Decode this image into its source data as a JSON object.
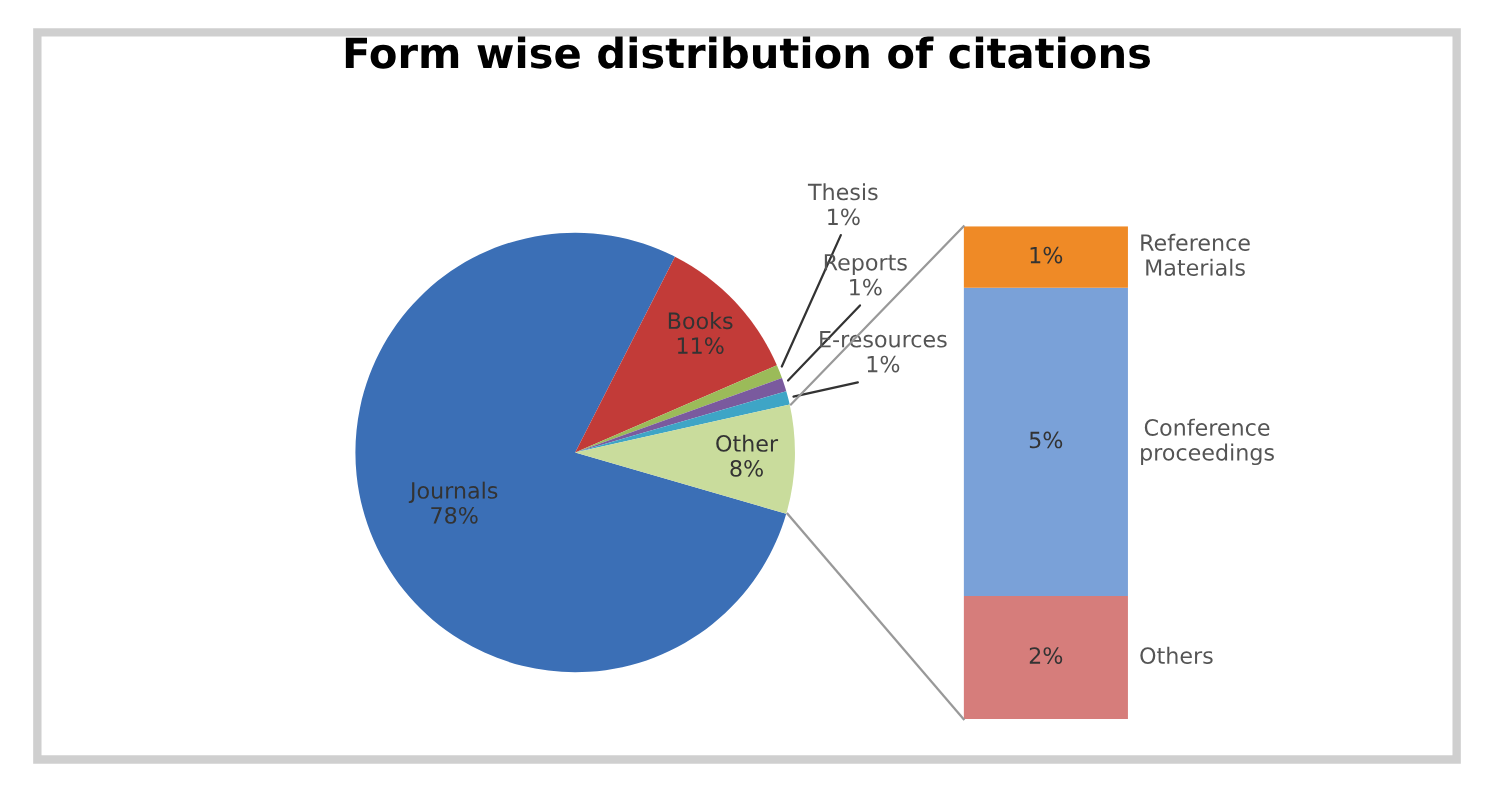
{
  "chart_data": [
    {
      "type": "pie",
      "title": "Form wise distribution of citations",
      "categories": [
        "Journals",
        "Books",
        "Thesis",
        "Reports",
        "E-resources",
        "Other"
      ],
      "values": [
        78,
        11,
        1,
        1,
        1,
        8
      ],
      "colors": [
        "#3b6fb6",
        "#c23b38",
        "#9bbb59",
        "#7a5a9e",
        "#3ea5c6",
        "#c9dc9c"
      ],
      "value_labels": [
        "78%",
        "11%",
        "1%",
        "1%",
        "1%",
        "8%"
      ]
    },
    {
      "type": "bar",
      "stacked": true,
      "categories": [
        null
      ],
      "tick_labels": false,
      "series": [
        {
          "name": "Others",
          "color": "#d67d7b",
          "values": [
            2
          ],
          "value_labels": [
            "2%"
          ]
        },
        {
          "name": "Conference proceedings",
          "color": "#7aa1d8",
          "values": [
            5
          ],
          "value_labels": [
            "5%"
          ]
        },
        {
          "name": "Reference Materials",
          "color": "#ef8a26",
          "values": [
            1
          ],
          "value_labels": [
            "1%"
          ]
        }
      ]
    }
  ]
}
